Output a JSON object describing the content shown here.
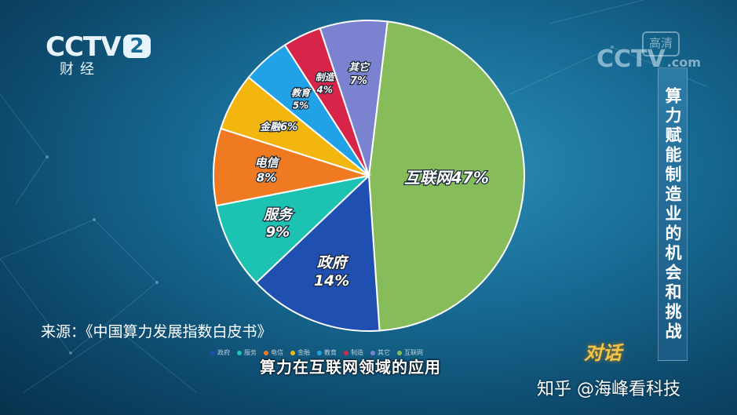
{
  "logo": {
    "channel": "CCTV",
    "number": "2",
    "sub": "财经"
  },
  "watermark": {
    "text": "CCTV",
    "suffix": ".com",
    "badge": "高清"
  },
  "side_title": "算力赋能制造业的机会和挑战",
  "source": "来源：《中国算力发展指数白皮书》",
  "subtitle": "算力在互联网领域的应用",
  "brand": "知乎 @海峰看科技",
  "emblem": "对话",
  "chart_data": {
    "type": "pie",
    "title": "",
    "slices": [
      {
        "name": "互联网",
        "label": "互联网47%",
        "value": 47,
        "color": "#86bd5a"
      },
      {
        "name": "政府",
        "label": "政府 14%",
        "value": 14,
        "color": "#1f4fb0"
      },
      {
        "name": "服务",
        "label": "服务 9%",
        "value": 9,
        "color": "#1cc2b2"
      },
      {
        "name": "电信",
        "label": "电信 8%",
        "value": 8,
        "color": "#f07a22"
      },
      {
        "name": "金融",
        "label": "金融6%",
        "value": 6,
        "color": "#f2b60f"
      },
      {
        "name": "教育",
        "label": "教育 5%",
        "value": 5,
        "color": "#22a2e6"
      },
      {
        "name": "制造",
        "label": "制造 4%",
        "value": 4,
        "color": "#d7254a"
      },
      {
        "name": "其它",
        "label": "其它 7%",
        "value": 7,
        "color": "#7b82d0"
      }
    ],
    "legend": [
      "政府",
      "服务",
      "电信",
      "金融",
      "教育",
      "制造",
      "其它",
      "互联网"
    ],
    "legend_position": "bottom"
  }
}
